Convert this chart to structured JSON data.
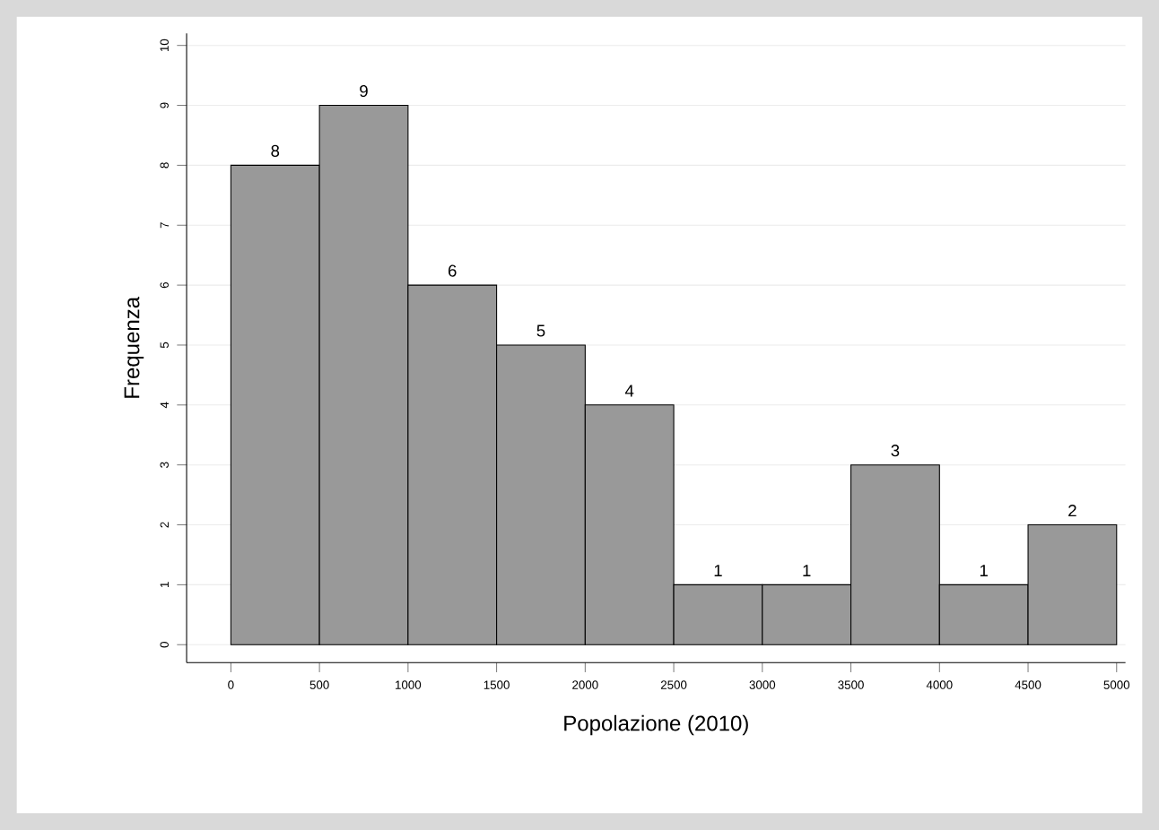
{
  "chart_data": {
    "type": "histogram",
    "xlabel": "Popolazione (2010)",
    "ylabel": "Frequenza",
    "bins": [
      0,
      500,
      1000,
      1500,
      2000,
      2500,
      3000,
      3500,
      4000,
      4500,
      5000
    ],
    "values": [
      8,
      9,
      6,
      5,
      4,
      1,
      1,
      3,
      1,
      2
    ],
    "color": "#999999",
    "data_labels": true,
    "grid": "y",
    "xlim": [
      -250,
      5050
    ],
    "ylim": [
      -0.3,
      10.2
    ],
    "xticks": [
      0,
      500,
      1000,
      1500,
      2000,
      2500,
      3000,
      3500,
      4000,
      4500,
      5000
    ],
    "yticks": [
      0,
      1,
      2,
      3,
      4,
      5,
      6,
      7,
      8,
      9,
      10
    ]
  }
}
